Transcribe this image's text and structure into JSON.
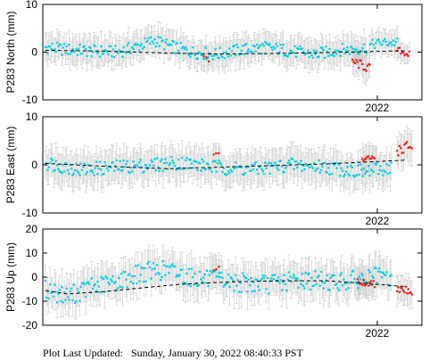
{
  "chart_data": [
    {
      "type": "scatter",
      "ylabel": "P283 North (mm)",
      "yticks": [
        10,
        0,
        -10
      ],
      "ylim": [
        -10,
        10
      ],
      "xlim": [
        2020.65,
        2022.18
      ],
      "xtick_value": 2022.0,
      "xtick_label": "2022",
      "trend": [
        [
          2020.66,
          0.4
        ],
        [
          2020.9,
          0.2
        ],
        [
          2021.15,
          -0.2
        ],
        [
          2021.35,
          -0.4
        ],
        [
          2021.55,
          -0.3
        ],
        [
          2021.8,
          -0.1
        ],
        [
          2022.12,
          0.3
        ]
      ],
      "series": [
        {
          "color": "#00d0e0",
          "start": 2020.66,
          "end": 2021.96,
          "step": 0.0048,
          "errorbar": 3.0,
          "anchors": [
            [
              2020.66,
              1.0
            ],
            [
              2020.75,
              0.5
            ],
            [
              2020.85,
              0.2
            ],
            [
              2020.95,
              0.0
            ],
            [
              2021.05,
              1.5
            ],
            [
              2021.1,
              2.5
            ],
            [
              2021.15,
              1.5
            ],
            [
              2021.25,
              0.0
            ],
            [
              2021.35,
              -0.5
            ],
            [
              2021.45,
              0.5
            ],
            [
              2021.55,
              1.0
            ],
            [
              2021.65,
              0.2
            ],
            [
              2021.75,
              -0.5
            ],
            [
              2021.85,
              0.5
            ],
            [
              2021.9,
              0.5
            ],
            [
              2021.96,
              1.0
            ]
          ],
          "noise": 1.3
        },
        {
          "color": "#00d0e0",
          "start": 2021.97,
          "end": 2022.08,
          "step": 0.005,
          "errorbar": 2.5,
          "anchors": [
            [
              2021.97,
              1.5
            ],
            [
              2022.02,
              2.0
            ],
            [
              2022.08,
              2.0
            ]
          ],
          "noise": 1.0
        },
        {
          "color": "#ee1c1c",
          "start": 2021.9,
          "end": 2021.97,
          "step": 0.005,
          "errorbar": 3.0,
          "anchors": [
            [
              2021.9,
              -2.0
            ],
            [
              2021.94,
              -2.8
            ],
            [
              2021.97,
              -3.5
            ]
          ],
          "noise": 1.0
        },
        {
          "color": "#ee1c1c",
          "start": 2022.08,
          "end": 2022.13,
          "step": 0.005,
          "errorbar": 2.0,
          "anchors": [
            [
              2022.08,
              0.5
            ],
            [
              2022.13,
              -0.5
            ]
          ],
          "noise": 0.7
        },
        {
          "color": "#ee1c1c",
          "start": 2021.3,
          "end": 2021.32,
          "step": 0.01,
          "errorbar": 2.5,
          "anchors": [
            [
              2021.3,
              -1.0
            ],
            [
              2021.32,
              -1.8
            ]
          ],
          "noise": 0.3
        }
      ]
    },
    {
      "type": "scatter",
      "ylabel": "P283 East (mm)",
      "yticks": [
        10,
        0,
        -10
      ],
      "ylim": [
        -10,
        10
      ],
      "xlim": [
        2020.65,
        2022.18
      ],
      "xtick_value": 2022.0,
      "xtick_label": "2022",
      "trend": [
        [
          2020.66,
          0.3
        ],
        [
          2020.9,
          -0.3
        ],
        [
          2021.15,
          -0.8
        ],
        [
          2021.35,
          -0.5
        ],
        [
          2021.55,
          -0.2
        ],
        [
          2021.8,
          0.2
        ],
        [
          2022.12,
          1.0
        ]
      ],
      "series": [
        {
          "color": "#00d0e0",
          "start": 2020.66,
          "end": 2022.06,
          "step": 0.0048,
          "errorbar": 3.5,
          "anchors": [
            [
              2020.66,
              0.5
            ],
            [
              2020.8,
              -1.0
            ],
            [
              2020.95,
              -0.5
            ],
            [
              2021.1,
              0.0
            ],
            [
              2021.2,
              0.5
            ],
            [
              2021.35,
              -0.5
            ],
            [
              2021.5,
              -1.0
            ],
            [
              2021.65,
              0.0
            ],
            [
              2021.8,
              -0.5
            ],
            [
              2021.95,
              -1.5
            ],
            [
              2022.06,
              -0.5
            ]
          ],
          "noise": 1.5
        },
        {
          "color": "#ee1c1c",
          "start": 2021.94,
          "end": 2021.99,
          "step": 0.005,
          "errorbar": 3.0,
          "anchors": [
            [
              2021.94,
              1.0
            ],
            [
              2021.99,
              1.5
            ]
          ],
          "noise": 0.7
        },
        {
          "color": "#ee1c1c",
          "start": 2022.08,
          "end": 2022.14,
          "step": 0.005,
          "errorbar": 3.5,
          "anchors": [
            [
              2022.08,
              3.0
            ],
            [
              2022.14,
              4.0
            ]
          ],
          "noise": 1.2
        },
        {
          "color": "#ee1c1c",
          "start": 2021.34,
          "end": 2021.36,
          "step": 0.01,
          "errorbar": 2.5,
          "anchors": [
            [
              2021.34,
              2.0
            ],
            [
              2021.36,
              2.5
            ]
          ],
          "noise": 0.4
        }
      ]
    },
    {
      "type": "scatter",
      "ylabel": "P283 Up (mm)",
      "yticks": [
        20,
        10,
        0,
        -10,
        -20
      ],
      "ylim": [
        -20,
        20
      ],
      "xlim": [
        2020.65,
        2022.18
      ],
      "xtick_value": 2022.0,
      "xtick_label": "2022",
      "trend": [
        [
          2020.66,
          -5.5
        ],
        [
          2020.75,
          -7.0
        ],
        [
          2020.9,
          -6.0
        ],
        [
          2021.05,
          -4.5
        ],
        [
          2021.2,
          -3.0
        ],
        [
          2021.4,
          -2.0
        ],
        [
          2021.6,
          -1.5
        ],
        [
          2021.8,
          -1.5
        ],
        [
          2022.0,
          -3.0
        ],
        [
          2022.12,
          -4.0
        ]
      ],
      "series": [
        {
          "color": "#00d0e0",
          "start": 2020.66,
          "end": 2022.06,
          "step": 0.0048,
          "errorbar": 7.0,
          "anchors": [
            [
              2020.66,
              -5.0
            ],
            [
              2020.75,
              -8.0
            ],
            [
              2020.85,
              -4.0
            ],
            [
              2020.95,
              -2.0
            ],
            [
              2021.05,
              2.0
            ],
            [
              2021.15,
              3.0
            ],
            [
              2021.25,
              0.0
            ],
            [
              2021.4,
              -2.0
            ],
            [
              2021.55,
              -3.0
            ],
            [
              2021.7,
              -1.0
            ],
            [
              2021.85,
              -2.0
            ],
            [
              2022.0,
              0.0
            ],
            [
              2022.06,
              -1.0
            ]
          ],
          "noise": 4.0
        },
        {
          "color": "#ee1c1c",
          "start": 2021.92,
          "end": 2021.99,
          "step": 0.005,
          "errorbar": 6.0,
          "anchors": [
            [
              2021.92,
              -2.0
            ],
            [
              2021.99,
              -3.0
            ]
          ],
          "noise": 1.5
        },
        {
          "color": "#ee1c1c",
          "start": 2022.08,
          "end": 2022.14,
          "step": 0.005,
          "errorbar": 6.0,
          "anchors": [
            [
              2022.08,
              -4.0
            ],
            [
              2022.14,
              -6.0
            ]
          ],
          "noise": 2.0
        },
        {
          "color": "#ee1c1c",
          "start": 2021.34,
          "end": 2021.36,
          "step": 0.01,
          "errorbar": 6.0,
          "anchors": [
            [
              2021.34,
              3.0
            ],
            [
              2021.36,
              4.0
            ]
          ],
          "noise": 0.5
        }
      ]
    }
  ],
  "footer_label": "Plot Last Updated:",
  "footer_value": "Sunday, January 30, 2022 08:40:33 PST",
  "colors": {
    "errorbar": "#c8c8c8",
    "trend": "#000000",
    "frame": "#000000"
  }
}
